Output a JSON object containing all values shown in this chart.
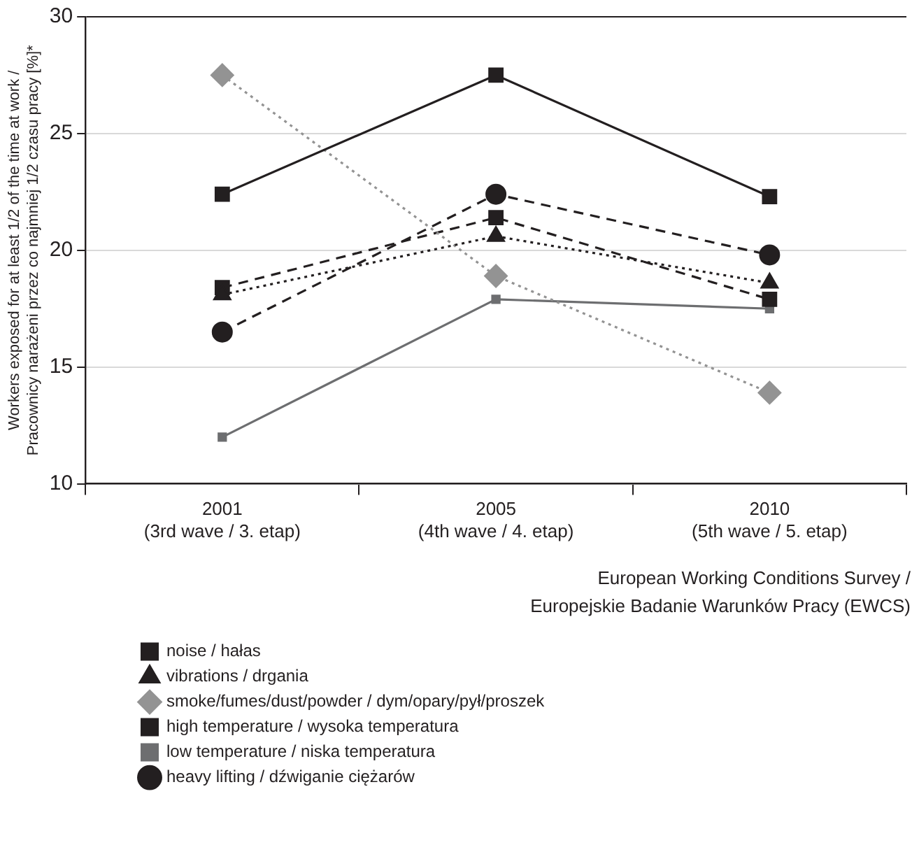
{
  "chart_data": {
    "type": "line",
    "ylabel": "Workers exposed for at least 1/2 of the time at work /\nPracownicy narażeni przez co najmniej 1/2 czasu pracy [%]*",
    "categories": [
      "2001\n(3rd wave / 3. etap)",
      "2005\n(4th wave / 4. etap)",
      "2010\n(5th wave / 5. etap)"
    ],
    "ylim": [
      10,
      30
    ],
    "yticks": [
      10,
      15,
      20,
      25,
      30
    ],
    "grid": "y",
    "legend": "bottom left",
    "annotations": [
      "European Working Conditions Survey /\nEuropejskie Badanie Warunków Pracy (EWCS)"
    ],
    "series": [
      {
        "name": "noise / hałas",
        "color": "#231f20",
        "marker": "square",
        "line_style": "solid",
        "values": [
          22.4,
          27.5,
          22.3
        ]
      },
      {
        "name": "vibrations / drgania",
        "color": "#231f20",
        "marker": "triangle",
        "line_style": "dotted",
        "values": [
          18.1,
          20.6,
          18.6
        ]
      },
      {
        "name": "smoke/fumes/dust/powder / dym/opary/pył/proszek",
        "color": "#939393",
        "marker": "diamond",
        "line_style": "dotted",
        "values": [
          27.5,
          18.9,
          13.9
        ]
      },
      {
        "name": "high temperature / wysoka temperatura",
        "color": "#231f20",
        "marker": "square",
        "line_style": "dashed",
        "values": [
          18.4,
          21.4,
          17.9
        ]
      },
      {
        "name": "low temperature / niska temperatura",
        "color": "#6d6e70",
        "marker": "square",
        "line_style": "solid",
        "values": [
          12.0,
          17.9,
          17.5
        ]
      },
      {
        "name": "heavy lifting / dźwiganie ciężarów",
        "color": "#231f20",
        "marker": "circle",
        "line_style": "dashed",
        "values": [
          16.5,
          22.4,
          19.8
        ]
      }
    ]
  }
}
